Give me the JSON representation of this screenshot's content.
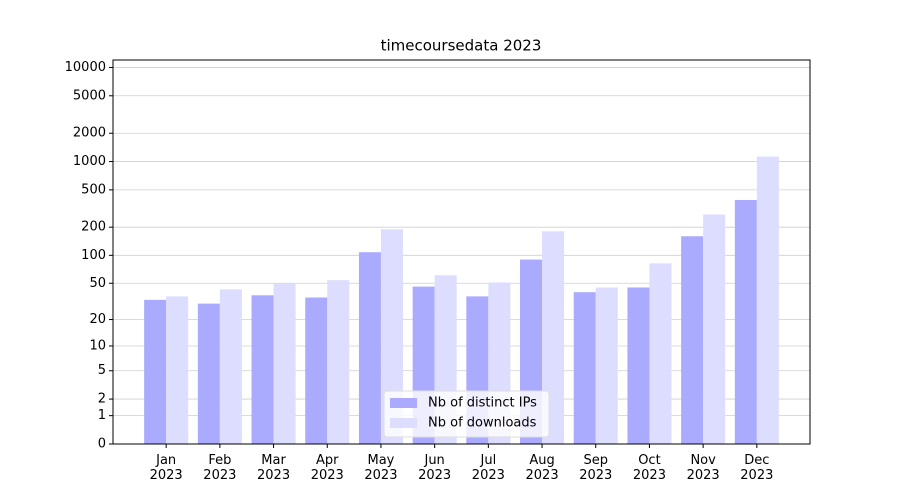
{
  "chart_data": {
    "type": "bar",
    "title": "timecoursedata 2023",
    "categories": [
      "Jan\n2023",
      "Feb\n2023",
      "Mar\n2023",
      "Apr\n2023",
      "May\n2023",
      "Jun\n2023",
      "Jul\n2023",
      "Aug\n2023",
      "Sep\n2023",
      "Oct\n2023",
      "Nov\n2023",
      "Dec\n2023"
    ],
    "series": [
      {
        "name": "Nb of distinct IPs",
        "color": "#aaaaff",
        "values": [
          33,
          30,
          37,
          35,
          108,
          46,
          36,
          90,
          40,
          45,
          160,
          390
        ]
      },
      {
        "name": "Nb of downloads",
        "color": "#ddddff",
        "values": [
          36,
          43,
          50,
          54,
          190,
          61,
          51,
          181,
          45,
          82,
          273,
          1130
        ]
      }
    ],
    "yscale": "log1p",
    "ylim": [
      0,
      12000
    ],
    "yticks": [
      0,
      1,
      2,
      5,
      10,
      20,
      50,
      100,
      200,
      500,
      1000,
      2000,
      5000,
      10000
    ],
    "grid": true,
    "legend": "lower center"
  }
}
